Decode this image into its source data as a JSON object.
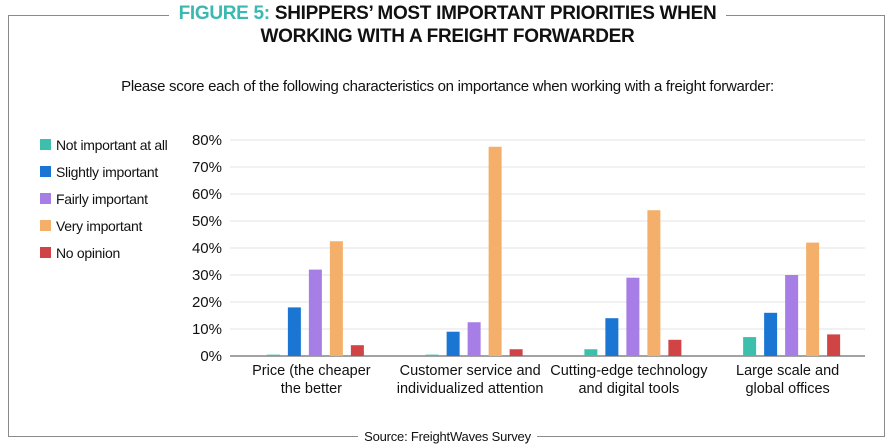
{
  "header": {
    "figure_label": "FIGURE 5:",
    "title_line1": "SHIPPERS’ MOST IMPORTANT PRIORITIES WHEN",
    "title_line2": "WORKING WITH A FREIGHT FORWARDER",
    "subtitle": "Please score each of the following characteristics on importance when working with a freight forwarder:"
  },
  "source": "Source: FreightWaves Survey",
  "colors": {
    "accent": "#3bb8b0",
    "not_important": "#3dbfae",
    "slightly": "#1a76d2",
    "fairly": "#a67ee6",
    "very": "#f4b06b",
    "no_opinion": "#d04446"
  },
  "chart_data": {
    "type": "bar",
    "title": "SHIPPERS’ MOST IMPORTANT PRIORITIES WHEN WORKING WITH A FREIGHT FORWARDER",
    "xlabel": "",
    "ylabel": "",
    "ylim": [
      0,
      80
    ],
    "yticks": [
      "0%",
      "10%",
      "20%",
      "30%",
      "40%",
      "50%",
      "60%",
      "70%",
      "80%"
    ],
    "grid": true,
    "legend_position": "left",
    "categories": [
      [
        "Price (the cheaper",
        "the better"
      ],
      [
        "Customer service and",
        "individualized attention"
      ],
      [
        "Cutting-edge technology",
        "and digital tools"
      ],
      [
        "Large scale and",
        "global offices"
      ]
    ],
    "series": [
      {
        "name": "Not important at all",
        "color": "#3dbfae",
        "values": [
          0.5,
          0.5,
          2.5,
          7
        ]
      },
      {
        "name": "Slightly important",
        "color": "#1a76d2",
        "values": [
          18,
          9,
          14,
          16
        ]
      },
      {
        "name": "Fairly important",
        "color": "#a67ee6",
        "values": [
          32,
          12.5,
          29,
          30
        ]
      },
      {
        "name": "Very important",
        "color": "#f4b06b",
        "values": [
          42.5,
          77.5,
          54,
          42
        ]
      },
      {
        "name": "No opinion",
        "color": "#d04446",
        "values": [
          4,
          2.5,
          6,
          8
        ]
      }
    ]
  }
}
